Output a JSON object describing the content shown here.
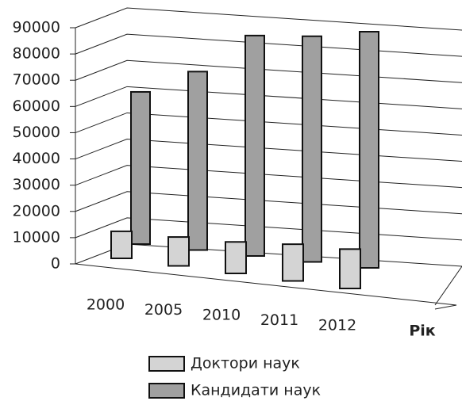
{
  "chart_data": {
    "type": "bar3d",
    "x_label": "Рік",
    "categories": [
      "2000",
      "2005",
      "2010",
      "2011",
      "2012"
    ],
    "series": [
      {
        "name": "Доктори наук",
        "color": "#d4d4d4",
        "values": [
          10300,
          11000,
          12000,
          14000,
          15000
        ]
      },
      {
        "name": "Кандидати наук",
        "color": "#a0a0a0",
        "values": [
          58000,
          68000,
          84000,
          86000,
          90000
        ]
      }
    ],
    "ylim": [
      0,
      90000
    ],
    "yticks": [
      0,
      10000,
      20000,
      30000,
      40000,
      50000,
      60000,
      70000,
      80000,
      90000
    ],
    "grid": true
  }
}
